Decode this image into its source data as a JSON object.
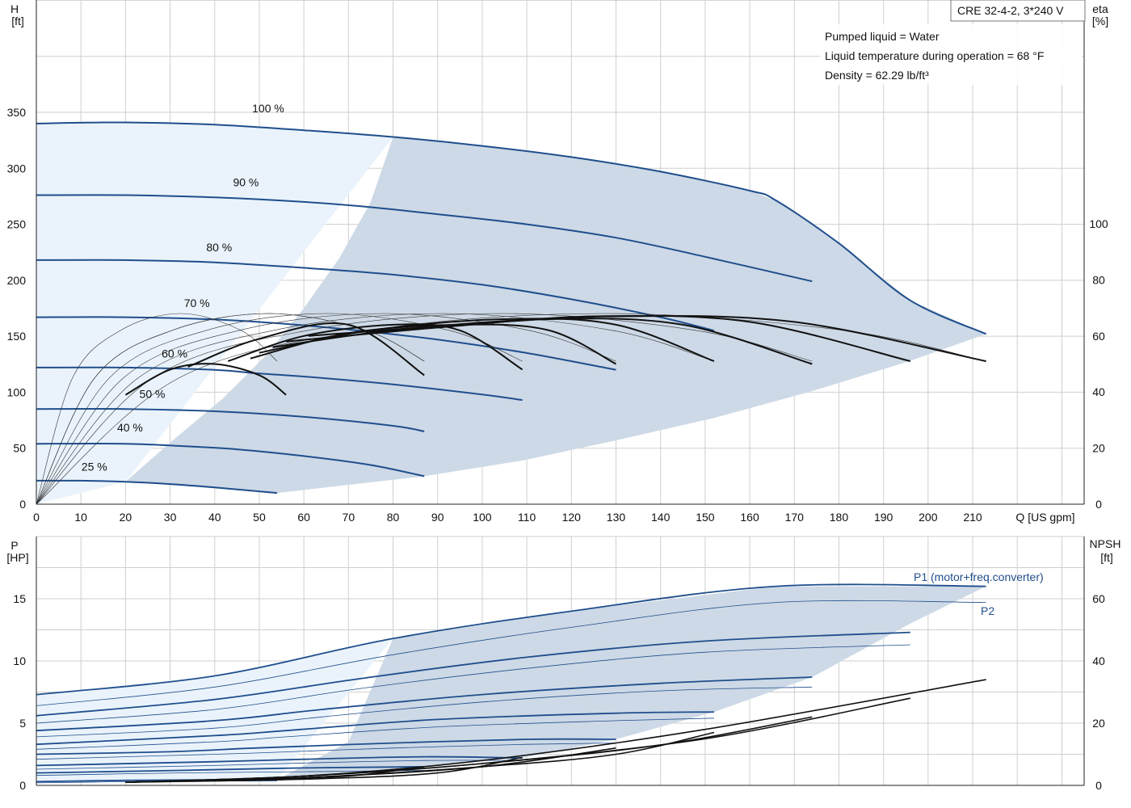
{
  "header": {
    "model": "CRE 32-4-2, 3*240 V",
    "info_lines": [
      "Pumped liquid = Water",
      "Liquid temperature during operation = 68 °F",
      "Density = 62.29 lb/ft³"
    ]
  },
  "colors": {
    "blue_curve": "#1f4e8c",
    "black_curve": "#111111",
    "op_area": "#cdd9e6",
    "light_area": "#eaf3fb",
    "grid": "#cfcfcf"
  },
  "chart_data": [
    {
      "type": "line",
      "name": "head",
      "ylabel_left": [
        "H",
        "[ft]"
      ],
      "ylabel_right": [
        "eta",
        "[%]"
      ],
      "xlabel": "Q [US gpm]",
      "xlim": [
        0,
        215
      ],
      "ylim": [
        0,
        350
      ],
      "eta_lim": [
        0,
        100
      ],
      "x_ticks": [
        0,
        10,
        20,
        30,
        40,
        50,
        60,
        70,
        80,
        90,
        100,
        110,
        120,
        130,
        140,
        150,
        160,
        170,
        180,
        190,
        200,
        210
      ],
      "y_ticks": [
        0,
        50,
        100,
        150,
        200,
        250,
        300,
        350
      ],
      "eta_ticks": [
        0,
        20,
        40,
        60,
        80,
        100
      ],
      "speed_labels": [
        {
          "text": "100 %",
          "x": 52,
          "y": 350
        },
        {
          "text": "90 %",
          "x": 47,
          "y": 284
        },
        {
          "text": "80 %",
          "x": 41,
          "y": 226
        },
        {
          "text": "70 %",
          "x": 36,
          "y": 176
        },
        {
          "text": "60 %",
          "x": 31,
          "y": 131
        },
        {
          "text": "50 %",
          "x": 26,
          "y": 95
        },
        {
          "text": "40 %",
          "x": 21,
          "y": 65
        },
        {
          "text": "25 %",
          "x": 13,
          "y": 30
        }
      ],
      "head_curves": [
        {
          "speed": "100 %",
          "q": [
            0,
            20,
            40,
            60,
            80,
            100,
            120,
            140,
            160,
            166,
            180,
            196,
            213
          ],
          "h": [
            340,
            341,
            339,
            334,
            328,
            320,
            310,
            297,
            280,
            271,
            233,
            182,
            152
          ]
        },
        {
          "speed": "90 %",
          "q": [
            0,
            20,
            40,
            60,
            73,
            90,
            110,
            130,
            150,
            174
          ],
          "h": [
            276,
            276,
            274,
            270,
            266,
            259,
            250,
            238,
            221,
            199
          ]
        },
        {
          "speed": "80 %",
          "q": [
            0,
            20,
            40,
            64,
            80,
            100,
            120,
            140,
            152
          ],
          "h": [
            218,
            218,
            216,
            210,
            205,
            196,
            183,
            167,
            155
          ]
        },
        {
          "speed": "70 %",
          "q": [
            0,
            20,
            40,
            56,
            70,
            90,
            110,
            130
          ],
          "h": [
            167,
            167,
            165,
            161,
            156,
            147,
            135,
            120
          ]
        },
        {
          "speed": "60 %",
          "q": [
            0,
            20,
            40,
            49,
            60,
            80,
            100,
            109
          ],
          "h": [
            122,
            122,
            120,
            117,
            114,
            107,
            98,
            93
          ]
        },
        {
          "speed": "50 %",
          "q": [
            0,
            20,
            40,
            60,
            80,
            87
          ],
          "h": [
            85,
            85,
            83,
            78,
            70,
            65
          ]
        },
        {
          "speed": "40 %",
          "q": [
            0,
            20,
            32,
            45,
            60,
            75,
            87
          ],
          "h": [
            54,
            54,
            52,
            49,
            43,
            35,
            25
          ]
        },
        {
          "speed": "25 %",
          "q": [
            0,
            10,
            20,
            30,
            40,
            54
          ],
          "h": [
            21,
            21,
            20,
            18,
            15,
            10
          ]
        }
      ],
      "eta_curves": [
        {
          "q": [
            20,
            30,
            40,
            50,
            56
          ],
          "eta": [
            39,
            48,
            50,
            46,
            39
          ]
        },
        {
          "q": [
            34,
            50,
            70,
            87
          ],
          "eta": [
            49,
            59,
            64,
            46
          ]
        },
        {
          "q": [
            43,
            60,
            80,
            95,
            109
          ],
          "eta": [
            51,
            60,
            64,
            62,
            48
          ]
        },
        {
          "q": [
            48,
            70,
            95,
            115,
            130
          ],
          "eta": [
            52,
            61,
            64,
            62,
            50
          ]
        },
        {
          "q": [
            50,
            75,
            105,
            130,
            152
          ],
          "eta": [
            54,
            62,
            66,
            64,
            51
          ]
        },
        {
          "q": [
            53,
            80,
            115,
            145,
            174
          ],
          "eta": [
            56,
            62,
            66,
            64,
            50
          ]
        },
        {
          "q": [
            56,
            90,
            125,
            160,
            196
          ],
          "eta": [
            58,
            63,
            67,
            65,
            51
          ]
        },
        {
          "q": [
            61,
            95,
            130,
            170,
            213
          ],
          "eta": [
            60,
            64,
            67,
            65,
            51
          ]
        }
      ]
    },
    {
      "type": "line",
      "name": "power",
      "ylabel_left": [
        "P",
        "[HP]"
      ],
      "ylabel_right": [
        "NPSH",
        "[ft]"
      ],
      "ylim": [
        0,
        17
      ],
      "npsh_lim": [
        0,
        68
      ],
      "y_ticks": [
        0,
        5,
        10,
        15
      ],
      "npsh_ticks": [
        0,
        20,
        40,
        60
      ],
      "series_labels": {
        "p1": "P1 (motor+freq.converter)",
        "p2": "P2"
      },
      "p1_curves": [
        {
          "q": [
            0,
            40,
            80,
            120,
            166,
            213
          ],
          "p": [
            7.3,
            8.8,
            11.8,
            14.0,
            16.0,
            16.0
          ]
        },
        {
          "q": [
            0,
            40,
            73,
            110,
            150,
            196
          ],
          "p": [
            5.6,
            6.9,
            8.6,
            10.3,
            11.6,
            12.3
          ]
        },
        {
          "q": [
            0,
            40,
            64,
            100,
            140,
            174
          ],
          "p": [
            4.4,
            5.2,
            6.1,
            7.3,
            8.2,
            8.7
          ]
        },
        {
          "q": [
            0,
            40,
            56,
            90,
            130,
            152
          ],
          "p": [
            3.3,
            4.0,
            4.4,
            5.3,
            5.8,
            5.9
          ]
        },
        {
          "q": [
            0,
            30,
            49,
            80,
            110,
            130
          ],
          "p": [
            2.5,
            2.7,
            3.0,
            3.4,
            3.7,
            3.7
          ]
        },
        {
          "q": [
            0,
            40,
            60,
            87,
            109
          ],
          "p": [
            1.6,
            1.9,
            2.1,
            2.3,
            2.2
          ]
        },
        {
          "q": [
            0,
            32,
            60,
            87
          ],
          "p": [
            1.0,
            1.2,
            1.4,
            1.5
          ]
        },
        {
          "q": [
            0,
            20,
            40,
            54
          ],
          "p": [
            0.3,
            0.4,
            0.45,
            0.45
          ]
        }
      ],
      "p2_curves": [
        {
          "q": [
            0,
            40,
            80,
            120,
            166,
            213
          ],
          "p": [
            6.4,
            7.9,
            10.5,
            12.7,
            14.7,
            14.7
          ]
        },
        {
          "q": [
            0,
            40,
            73,
            110,
            150,
            196
          ],
          "p": [
            5.0,
            6.1,
            7.8,
            9.4,
            10.7,
            11.3
          ]
        },
        {
          "q": [
            0,
            40,
            64,
            100,
            140,
            174
          ],
          "p": [
            3.9,
            4.6,
            5.5,
            6.7,
            7.6,
            7.9
          ]
        },
        {
          "q": [
            0,
            40,
            56,
            90,
            130,
            152
          ],
          "p": [
            2.9,
            3.5,
            3.9,
            4.7,
            5.2,
            5.4
          ]
        },
        {
          "q": [
            0,
            30,
            49,
            80,
            110,
            130
          ],
          "p": [
            2.1,
            2.4,
            2.6,
            3.0,
            3.3,
            3.4
          ]
        },
        {
          "q": [
            0,
            40,
            60,
            87,
            109
          ],
          "p": [
            1.3,
            1.6,
            1.8,
            2.0,
            2.0
          ]
        },
        {
          "q": [
            0,
            32,
            60,
            87
          ],
          "p": [
            0.8,
            1.0,
            1.1,
            1.2
          ]
        },
        {
          "q": [
            0,
            20,
            40,
            54
          ],
          "p": [
            0.2,
            0.3,
            0.35,
            0.35
          ]
        }
      ],
      "npsh_curves": [
        {
          "q": [
            20,
            60,
            100,
            150,
            213
          ],
          "npsh": [
            1,
            3,
            8,
            18,
            34
          ]
        },
        {
          "q": [
            20,
            60,
            100,
            150,
            196
          ],
          "npsh": [
            1,
            3,
            7,
            15,
            28
          ]
        },
        {
          "q": [
            20,
            60,
            100,
            140,
            174
          ],
          "npsh": [
            1,
            3,
            7,
            13,
            22
          ]
        },
        {
          "q": [
            20,
            60,
            100,
            130,
            152
          ],
          "npsh": [
            1,
            2.5,
            6,
            10,
            17
          ]
        },
        {
          "q": [
            20,
            60,
            100,
            130
          ],
          "npsh": [
            1,
            2.5,
            6,
            12
          ]
        },
        {
          "q": [
            20,
            60,
            90,
            109
          ],
          "npsh": [
            1,
            2,
            4,
            9
          ]
        },
        {
          "q": [
            20,
            50,
            70,
            87
          ],
          "npsh": [
            1,
            2,
            3,
            6
          ]
        }
      ]
    }
  ]
}
